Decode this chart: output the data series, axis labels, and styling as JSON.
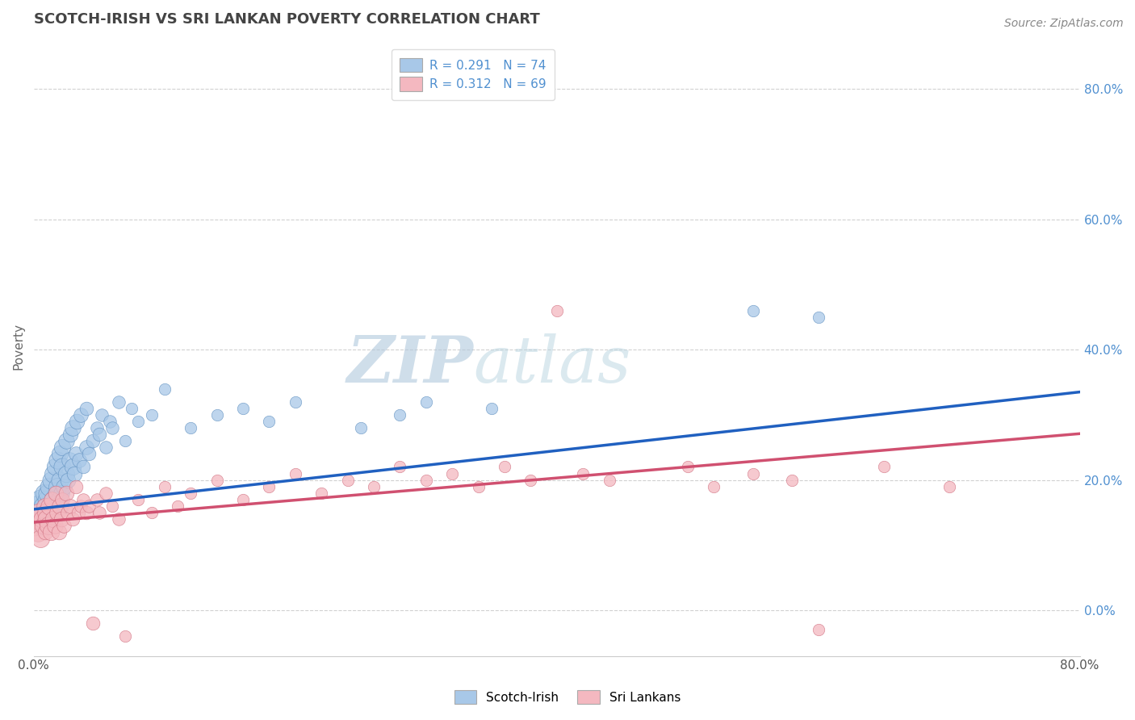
{
  "title": "SCOTCH-IRISH VS SRI LANKAN POVERTY CORRELATION CHART",
  "source": "Source: ZipAtlas.com",
  "ylabel": "Poverty",
  "right_yticks": [
    "0.0%",
    "20.0%",
    "40.0%",
    "60.0%",
    "80.0%"
  ],
  "right_ytick_vals": [
    0.0,
    0.2,
    0.4,
    0.6,
    0.8
  ],
  "xlim": [
    0.0,
    0.8
  ],
  "ylim": [
    -0.07,
    0.88
  ],
  "legend_line1": "R = 0.291   N = 74",
  "legend_line2": "R = 0.312   N = 69",
  "blue_color": "#a8c8e8",
  "pink_color": "#f4b8c0",
  "blue_edge_color": "#6090c0",
  "pink_edge_color": "#d07080",
  "blue_line_color": "#2060c0",
  "pink_line_color": "#d05070",
  "title_color": "#444444",
  "source_color": "#888888",
  "watermark_color": "#d8e8f0",
  "background_color": "#ffffff",
  "grid_color": "#cccccc",
  "right_axis_color": "#5090d0",
  "scotch_irish_x": [
    0.002,
    0.003,
    0.004,
    0.005,
    0.005,
    0.006,
    0.007,
    0.008,
    0.009,
    0.01,
    0.01,
    0.01,
    0.01,
    0.01,
    0.012,
    0.012,
    0.013,
    0.013,
    0.014,
    0.015,
    0.015,
    0.016,
    0.016,
    0.017,
    0.018,
    0.018,
    0.019,
    0.02,
    0.02,
    0.02,
    0.021,
    0.022,
    0.022,
    0.023,
    0.025,
    0.025,
    0.026,
    0.027,
    0.028,
    0.03,
    0.03,
    0.031,
    0.032,
    0.033,
    0.035,
    0.036,
    0.038,
    0.04,
    0.04,
    0.042,
    0.045,
    0.048,
    0.05,
    0.052,
    0.055,
    0.058,
    0.06,
    0.065,
    0.07,
    0.075,
    0.08,
    0.09,
    0.1,
    0.12,
    0.14,
    0.16,
    0.18,
    0.2,
    0.25,
    0.28,
    0.3,
    0.35,
    0.55,
    0.6
  ],
  "scotch_irish_y": [
    0.15,
    0.16,
    0.14,
    0.17,
    0.15,
    0.13,
    0.16,
    0.18,
    0.14,
    0.15,
    0.16,
    0.17,
    0.13,
    0.18,
    0.14,
    0.19,
    0.15,
    0.2,
    0.16,
    0.17,
    0.21,
    0.15,
    0.22,
    0.18,
    0.19,
    0.23,
    0.17,
    0.16,
    0.2,
    0.24,
    0.18,
    0.22,
    0.25,
    0.19,
    0.21,
    0.26,
    0.2,
    0.23,
    0.27,
    0.22,
    0.28,
    0.21,
    0.24,
    0.29,
    0.23,
    0.3,
    0.22,
    0.25,
    0.31,
    0.24,
    0.26,
    0.28,
    0.27,
    0.3,
    0.25,
    0.29,
    0.28,
    0.32,
    0.26,
    0.31,
    0.29,
    0.3,
    0.34,
    0.28,
    0.3,
    0.31,
    0.29,
    0.32,
    0.28,
    0.3,
    0.32,
    0.31,
    0.46,
    0.45
  ],
  "scotch_irish_size": [
    200,
    200,
    180,
    180,
    160,
    160,
    150,
    150,
    140,
    180,
    160,
    150,
    140,
    130,
    160,
    150,
    140,
    130,
    120,
    150,
    140,
    130,
    120,
    110,
    140,
    130,
    120,
    140,
    130,
    120,
    110,
    130,
    120,
    110,
    120,
    110,
    100,
    110,
    100,
    120,
    110,
    100,
    90,
    100,
    90,
    90,
    80,
    90,
    80,
    80,
    80,
    70,
    80,
    70,
    70,
    70,
    70,
    70,
    60,
    60,
    60,
    60,
    60,
    60,
    60,
    60,
    60,
    60,
    60,
    60,
    60,
    60,
    60,
    60
  ],
  "sri_lankan_x": [
    0.001,
    0.002,
    0.003,
    0.004,
    0.005,
    0.006,
    0.007,
    0.008,
    0.009,
    0.01,
    0.01,
    0.011,
    0.012,
    0.013,
    0.014,
    0.015,
    0.016,
    0.017,
    0.018,
    0.019,
    0.02,
    0.021,
    0.022,
    0.023,
    0.025,
    0.026,
    0.028,
    0.03,
    0.032,
    0.034,
    0.036,
    0.038,
    0.04,
    0.042,
    0.045,
    0.048,
    0.05,
    0.055,
    0.06,
    0.065,
    0.07,
    0.08,
    0.09,
    0.1,
    0.11,
    0.12,
    0.14,
    0.16,
    0.18,
    0.2,
    0.22,
    0.24,
    0.26,
    0.28,
    0.3,
    0.32,
    0.34,
    0.36,
    0.38,
    0.4,
    0.42,
    0.44,
    0.5,
    0.52,
    0.55,
    0.58,
    0.6,
    0.65,
    0.7
  ],
  "sri_lankan_y": [
    0.13,
    0.14,
    0.12,
    0.15,
    0.11,
    0.14,
    0.13,
    0.16,
    0.12,
    0.15,
    0.14,
    0.13,
    0.16,
    0.12,
    0.17,
    0.14,
    0.13,
    0.18,
    0.15,
    0.12,
    0.16,
    0.14,
    0.17,
    0.13,
    0.18,
    0.15,
    0.16,
    0.14,
    0.19,
    0.15,
    0.16,
    0.17,
    0.15,
    0.16,
    -0.02,
    0.17,
    0.15,
    0.18,
    0.16,
    0.14,
    -0.04,
    0.17,
    0.15,
    0.19,
    0.16,
    0.18,
    0.2,
    0.17,
    0.19,
    0.21,
    0.18,
    0.2,
    0.19,
    0.22,
    0.2,
    0.21,
    0.19,
    0.22,
    0.2,
    0.46,
    0.21,
    0.2,
    0.22,
    0.19,
    0.21,
    0.2,
    -0.03,
    0.22,
    0.19
  ],
  "sri_lankan_size": [
    180,
    170,
    160,
    150,
    140,
    130,
    120,
    110,
    100,
    160,
    150,
    140,
    130,
    120,
    110,
    120,
    110,
    100,
    110,
    100,
    110,
    100,
    90,
    90,
    100,
    90,
    90,
    80,
    80,
    80,
    70,
    70,
    80,
    70,
    80,
    70,
    70,
    70,
    60,
    70,
    60,
    60,
    60,
    60,
    60,
    60,
    60,
    60,
    60,
    60,
    60,
    60,
    60,
    60,
    60,
    60,
    60,
    60,
    60,
    60,
    60,
    60,
    60,
    60,
    60,
    60,
    60,
    60,
    60
  ]
}
